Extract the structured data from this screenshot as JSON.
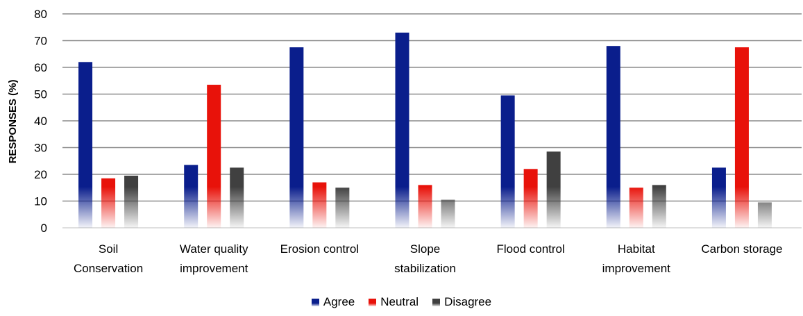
{
  "chart_data": {
    "type": "bar",
    "categories": [
      [
        "Soil",
        "Conservation"
      ],
      [
        "Water quality",
        "improvement"
      ],
      [
        "Erosion control"
      ],
      [
        "Slope",
        "stabilization"
      ],
      [
        "Flood control"
      ],
      [
        "Habitat",
        "improvement"
      ],
      [
        "Carbon storage"
      ]
    ],
    "series": [
      {
        "name": "Agree",
        "color": "#0a1e8c",
        "values": [
          62,
          23.5,
          67.5,
          73,
          49.5,
          68,
          22.5
        ]
      },
      {
        "name": "Neutral",
        "color": "#e8120a",
        "values": [
          18.5,
          53.5,
          17,
          16,
          22,
          15,
          67.5
        ]
      },
      {
        "name": "Disagree",
        "color": "#404040",
        "values": [
          19.5,
          22.5,
          15,
          10.5,
          28.5,
          16,
          9.5
        ]
      }
    ],
    "title": "",
    "xlabel": "",
    "ylabel": "RESPONSES (%)",
    "ylim": [
      0,
      80
    ],
    "yticks": [
      0,
      10,
      20,
      30,
      40,
      50,
      60,
      70,
      80
    ],
    "grid": true,
    "legend_position": "bottom"
  }
}
